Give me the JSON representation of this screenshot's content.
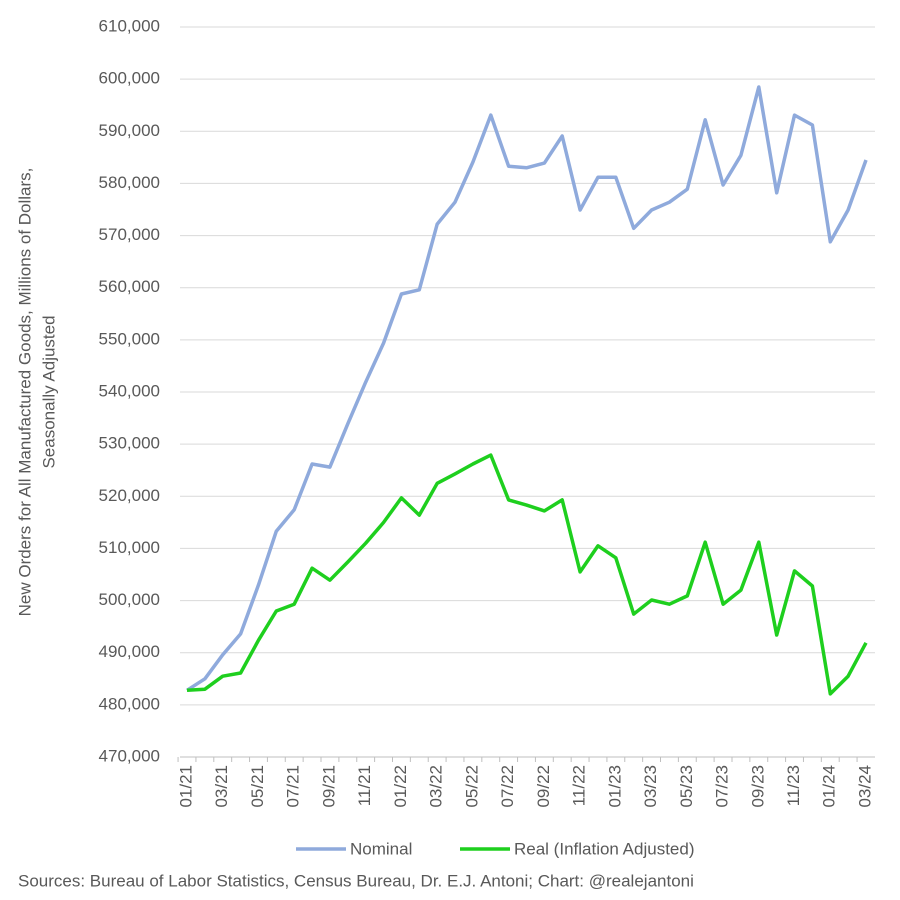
{
  "chart_data": {
    "type": "line",
    "y_label": [
      "New Orders for All Manufactured Goods, Millions of Dollars,",
      "Seasonally Adjusted"
    ],
    "source": "Sources: Bureau of Labor Statistics, Census Bureau, Dr. E.J. Antoni; Chart: @realejantoni",
    "categories": [
      "01/21",
      null,
      "03/21",
      null,
      "05/21",
      null,
      "07/21",
      null,
      "09/21",
      null,
      "11/21",
      null,
      "01/22",
      null,
      "03/22",
      null,
      "05/22",
      null,
      "07/22",
      null,
      "09/22",
      null,
      "11/22",
      null,
      "01/23",
      null,
      "03/23",
      null,
      "05/23",
      null,
      "07/23",
      null,
      "09/23",
      null,
      "11/23",
      null,
      "01/24",
      null,
      "03/24"
    ],
    "series": [
      {
        "name": "Nominal",
        "color": "#8faadc",
        "values": [
          482800,
          485000,
          489600,
          493600,
          503000,
          513300,
          517400,
          526200,
          525600,
          533900,
          541900,
          549400,
          558800,
          559600,
          572200,
          576400,
          584100,
          593100,
          583300,
          583000,
          583900,
          589100,
          574900,
          581200,
          581200,
          571400,
          574900,
          576400,
          578900,
          592200,
          579700,
          585400,
          598500,
          578200,
          593100,
          591200,
          568800,
          574900,
          584500
        ]
      },
      {
        "name": "Real (Inflation Adjusted)",
        "color": "#1ecf1e",
        "values": [
          482800,
          483000,
          485500,
          486100,
          492400,
          498000,
          499300,
          506200,
          503900,
          507400,
          511000,
          515000,
          519700,
          516400,
          522500,
          524300,
          526200,
          527900,
          519300,
          518300,
          517200,
          519300,
          505500,
          510500,
          508200,
          497400,
          500100,
          499300,
          500900,
          511200,
          499300,
          502000,
          511200,
          493400,
          505700,
          502800,
          482100,
          485500,
          491900
        ]
      }
    ],
    "ylim": [
      470000,
      610000
    ],
    "yticks": [
      {
        "value": 470000,
        "label": "470,000"
      },
      {
        "value": 480000,
        "label": "480,000"
      },
      {
        "value": 490000,
        "label": "490,000"
      },
      {
        "value": 500000,
        "label": "500,000"
      },
      {
        "value": 510000,
        "label": "510,000"
      },
      {
        "value": 520000,
        "label": "520,000"
      },
      {
        "value": 530000,
        "label": "530,000"
      },
      {
        "value": 540000,
        "label": "540,000"
      },
      {
        "value": 550000,
        "label": "550,000"
      },
      {
        "value": 560000,
        "label": "560,000"
      },
      {
        "value": 570000,
        "label": "570,000"
      },
      {
        "value": 580000,
        "label": "580,000"
      },
      {
        "value": 590000,
        "label": "590,000"
      },
      {
        "value": 600000,
        "label": "600,000"
      },
      {
        "value": 610000,
        "label": "610,000"
      }
    ],
    "grid": true,
    "legend": "bottom"
  }
}
